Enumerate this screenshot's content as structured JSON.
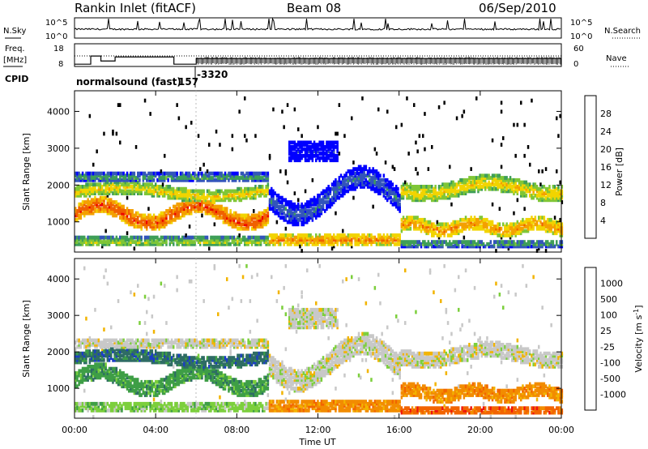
{
  "header": {
    "station": "Rankin Inlet (fitACF)",
    "beam": "Beam 08",
    "date": "06/Sep/2010"
  },
  "colors": {
    "power_scale": [
      "#0000ff",
      "#3355bb",
      "#3e9e58",
      "#7fc636",
      "#f2d400",
      "#f4a000",
      "#f06000",
      "#ee0000"
    ],
    "velocity_scale": [
      "#1a3cc8",
      "#2e6c64",
      "#3e9e46",
      "#7ccf3c",
      "#c8c8c8",
      "#f2b400",
      "#f28c00",
      "#f26400",
      "#ee1010"
    ]
  },
  "chart_data": [
    {
      "type": "line",
      "name": "nsky-nsearch-panel",
      "left_label": "N.Sky",
      "right_label": "N.Search",
      "left_ticks": [
        "10^5",
        "10^0"
      ],
      "right_ticks": [
        "10^5",
        "10^0"
      ],
      "xlim": [
        0,
        24
      ]
    },
    {
      "type": "line",
      "name": "frequency-nave-panel",
      "left_label_1": "Freq.",
      "left_label_2": "[MHz]",
      "right_label": "Nave",
      "left_ticks": [
        "18",
        "8"
      ],
      "right_ticks": [
        "60",
        "0"
      ],
      "freq_steps": [
        {
          "x": 0.0,
          "y": 9.0
        },
        {
          "x": 0.8,
          "y": 12.6
        },
        {
          "x": 1.3,
          "y": 10.4
        },
        {
          "x": 2.0,
          "y": 12.2
        },
        {
          "x": 4.9,
          "y": 9.0
        },
        {
          "x": 6.0,
          "y": 11.5
        },
        {
          "x": 24.0,
          "y": 11.5
        }
      ],
      "xlim": [
        0,
        24
      ],
      "ylim": [
        8,
        18
      ]
    },
    {
      "type": "text",
      "name": "cpid-row",
      "label": "CPID",
      "mode": "normalsound (fast)",
      "values": [
        "157",
        "-3320"
      ]
    },
    {
      "type": "heatmap",
      "name": "power-panel",
      "ylabel": "Slant Range [km]",
      "yticks": [
        1000,
        2000,
        3000,
        4000
      ],
      "ylim": [
        180,
        4560
      ],
      "xlim": [
        0,
        24
      ],
      "colorbar_label": "Power [dB]",
      "colorbar_ticks": [
        "28",
        "24",
        "20",
        "16",
        "12",
        "8",
        "4"
      ]
    },
    {
      "type": "heatmap",
      "name": "velocity-panel",
      "ylabel": "Slant Range [km]",
      "yticks": [
        1000,
        2000,
        3000,
        4000
      ],
      "ylim": [
        180,
        4560
      ],
      "xlim": [
        0,
        24
      ],
      "colorbar_label": "Velocity [m s^-1]",
      "colorbar_ticks": [
        "1000",
        "500",
        "100",
        "25",
        "-25",
        "-100",
        "-500",
        "-1000"
      ]
    }
  ],
  "xaxis": {
    "ticks": [
      "00:00",
      "04:00",
      "08:00",
      "12:00",
      "16:00",
      "20:00",
      "00:00"
    ],
    "label": "Time UT"
  }
}
